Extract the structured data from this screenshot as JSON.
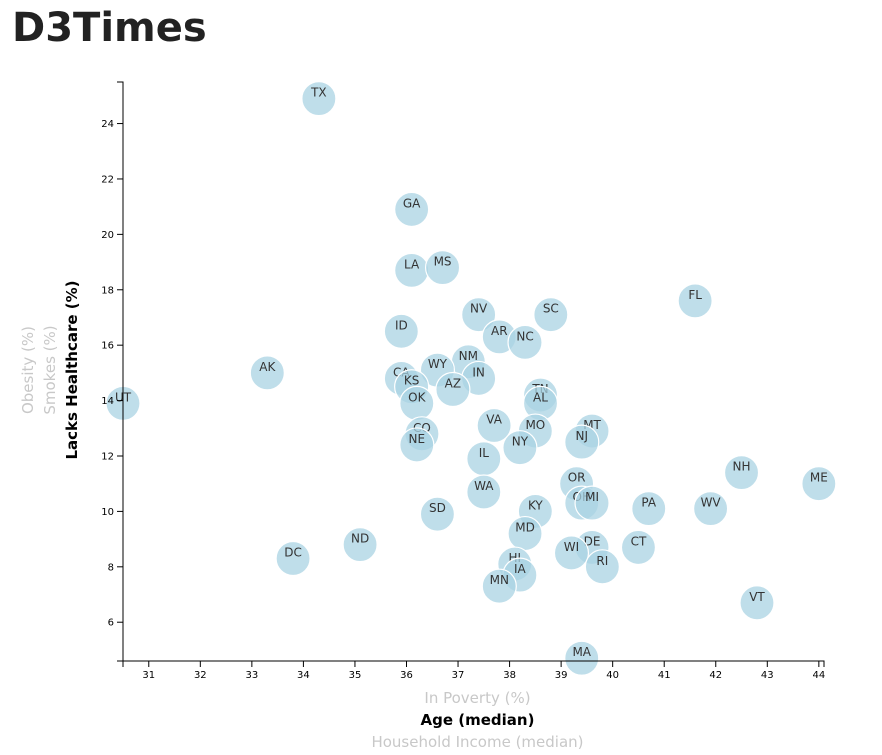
{
  "page": {
    "title": "D3Times"
  },
  "chart_data": {
    "type": "scatter",
    "xlabel": "Age (median)",
    "ylabel": "Lacks Healthcare (%)",
    "x_axis_options": [
      {
        "label": "In Poverty (%)",
        "active": false
      },
      {
        "label": "Age (median)",
        "active": true
      },
      {
        "label": "Household Income (median)",
        "active": false
      }
    ],
    "y_axis_options": [
      {
        "label": "Lacks Healthcare (%)",
        "active": true
      },
      {
        "label": "Smokes (%)",
        "active": false
      },
      {
        "label": "Obesity (%)",
        "active": false
      }
    ],
    "xlim": [
      30.5,
      44.1
    ],
    "ylim": [
      4.6,
      25.5
    ],
    "x_ticks": [
      31,
      32,
      33,
      34,
      35,
      36,
      37,
      38,
      39,
      40,
      41,
      42,
      43,
      44
    ],
    "y_ticks": [
      6,
      8,
      10,
      12,
      14,
      16,
      18,
      20,
      22,
      24
    ],
    "grid": false,
    "points": [
      {
        "label": "TX",
        "x": 34.3,
        "y": 24.9
      },
      {
        "label": "GA",
        "x": 36.1,
        "y": 20.9
      },
      {
        "label": "LA",
        "x": 36.1,
        "y": 18.7
      },
      {
        "label": "MS",
        "x": 36.7,
        "y": 18.8
      },
      {
        "label": "FL",
        "x": 41.6,
        "y": 17.6
      },
      {
        "label": "NV",
        "x": 37.4,
        "y": 17.1
      },
      {
        "label": "SC",
        "x": 38.8,
        "y": 17.1
      },
      {
        "label": "AR",
        "x": 37.8,
        "y": 16.3
      },
      {
        "label": "NC",
        "x": 38.3,
        "y": 16.1
      },
      {
        "label": "ID",
        "x": 35.9,
        "y": 16.5
      },
      {
        "label": "AK",
        "x": 33.3,
        "y": 15.0
      },
      {
        "label": "NM",
        "x": 37.2,
        "y": 15.4
      },
      {
        "label": "WY",
        "x": 36.6,
        "y": 15.1
      },
      {
        "label": "IN",
        "x": 37.4,
        "y": 14.8
      },
      {
        "label": "CA",
        "x": 35.9,
        "y": 14.8
      },
      {
        "label": "KS",
        "x": 36.1,
        "y": 14.5
      },
      {
        "label": "AZ",
        "x": 36.9,
        "y": 14.4
      },
      {
        "label": "TN",
        "x": 38.6,
        "y": 14.2
      },
      {
        "label": "AL",
        "x": 38.6,
        "y": 13.9
      },
      {
        "label": "UT",
        "x": 30.5,
        "y": 13.9
      },
      {
        "label": "OK",
        "x": 36.2,
        "y": 13.9
      },
      {
        "label": "VA",
        "x": 37.7,
        "y": 13.1
      },
      {
        "label": "MO",
        "x": 38.5,
        "y": 12.9
      },
      {
        "label": "MT",
        "x": 39.6,
        "y": 12.9
      },
      {
        "label": "NJ",
        "x": 39.4,
        "y": 12.5
      },
      {
        "label": "CO",
        "x": 36.3,
        "y": 12.8
      },
      {
        "label": "NE",
        "x": 36.2,
        "y": 12.4
      },
      {
        "label": "NY",
        "x": 38.2,
        "y": 12.3
      },
      {
        "label": "IL",
        "x": 37.5,
        "y": 11.9
      },
      {
        "label": "NH",
        "x": 42.5,
        "y": 11.4
      },
      {
        "label": "ME",
        "x": 44.0,
        "y": 11.0
      },
      {
        "label": "OR",
        "x": 39.3,
        "y": 11.0
      },
      {
        "label": "WA",
        "x": 37.5,
        "y": 10.7
      },
      {
        "label": "OH",
        "x": 39.4,
        "y": 10.3
      },
      {
        "label": "MI",
        "x": 39.6,
        "y": 10.3
      },
      {
        "label": "PA",
        "x": 40.7,
        "y": 10.1
      },
      {
        "label": "WV",
        "x": 41.9,
        "y": 10.1
      },
      {
        "label": "KY",
        "x": 38.5,
        "y": 10.0
      },
      {
        "label": "SD",
        "x": 36.6,
        "y": 9.9
      },
      {
        "label": "MD",
        "x": 38.3,
        "y": 9.2
      },
      {
        "label": "ND",
        "x": 35.1,
        "y": 8.8
      },
      {
        "label": "CT",
        "x": 40.5,
        "y": 8.7
      },
      {
        "label": "DE",
        "x": 39.6,
        "y": 8.7
      },
      {
        "label": "WI",
        "x": 39.2,
        "y": 8.5
      },
      {
        "label": "DC",
        "x": 33.8,
        "y": 8.3
      },
      {
        "label": "HI",
        "x": 38.1,
        "y": 8.1
      },
      {
        "label": "RI",
        "x": 39.8,
        "y": 8.0
      },
      {
        "label": "IA",
        "x": 38.2,
        "y": 7.7
      },
      {
        "label": "MN",
        "x": 37.8,
        "y": 7.3
      },
      {
        "label": "VT",
        "x": 42.8,
        "y": 6.7
      },
      {
        "label": "MA",
        "x": 39.4,
        "y": 4.7
      }
    ]
  }
}
